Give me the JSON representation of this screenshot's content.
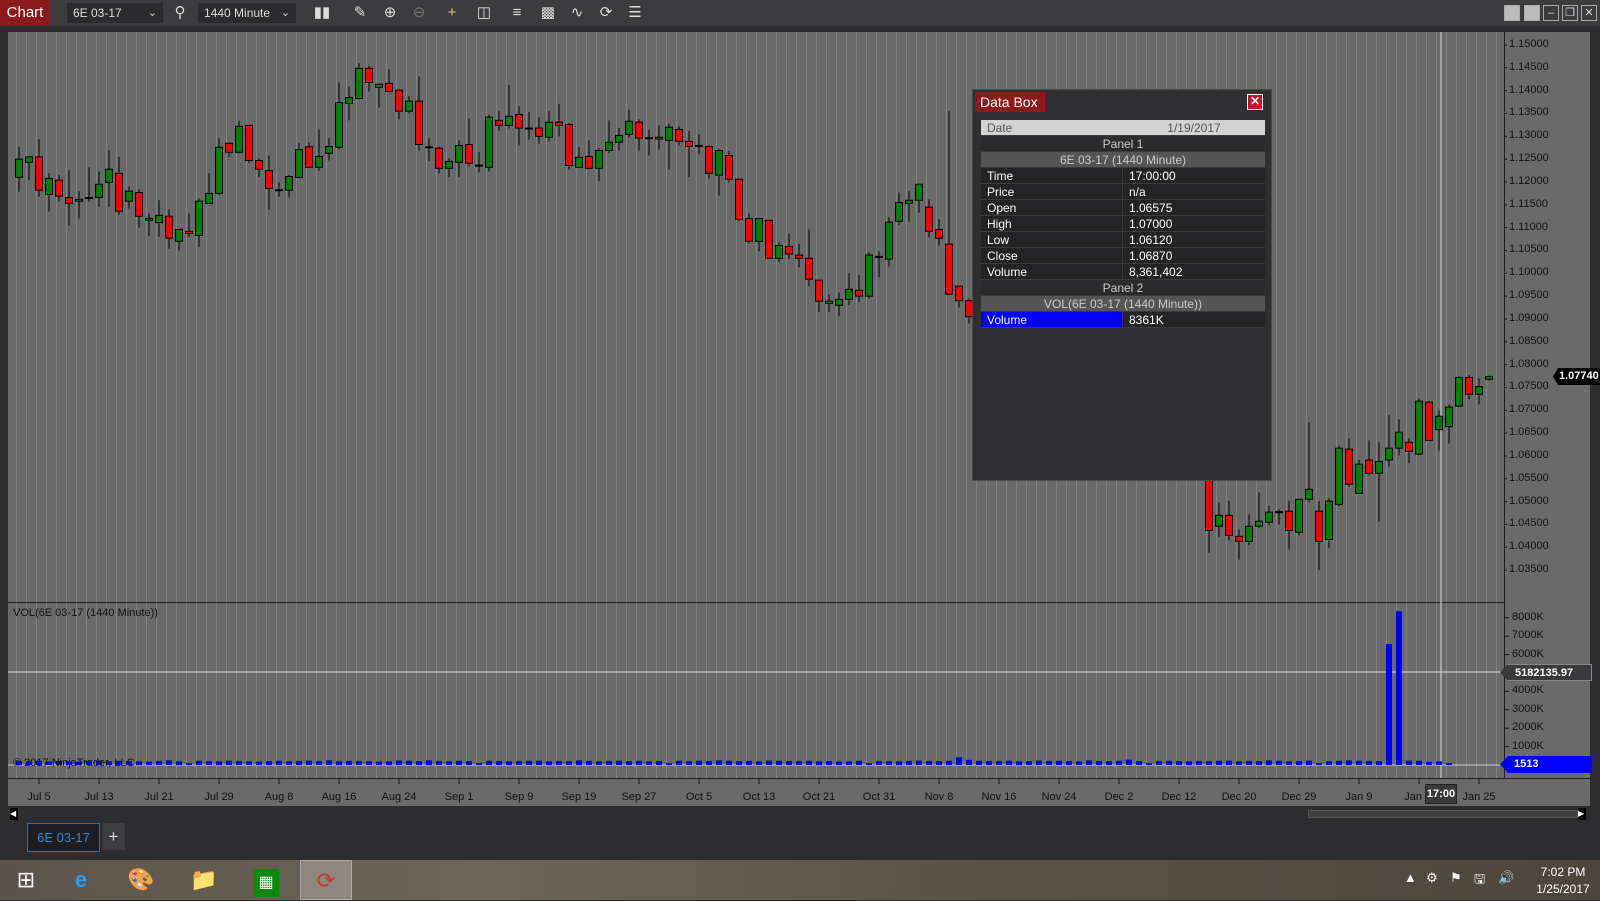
{
  "toolbar": {
    "chart_tab": "Chart",
    "instrument": "6E 03-17",
    "interval": "1440 Minute"
  },
  "data_box": {
    "title": "Data Box",
    "date_label": "Date",
    "date": "1/19/2017",
    "panel1": "Panel 1",
    "panel1_series": "6E 03-17 (1440 Minute)",
    "rows": [
      {
        "k": "Time",
        "v": "17:00:00"
      },
      {
        "k": "Price",
        "v": "n/a"
      },
      {
        "k": "Open",
        "v": "1.06575"
      },
      {
        "k": "High",
        "v": "1.07000"
      },
      {
        "k": "Low",
        "v": "1.06120"
      },
      {
        "k": "Close",
        "v": "1.06870"
      },
      {
        "k": "Volume",
        "v": "8,361,402"
      }
    ],
    "panel2": "Panel 2",
    "panel2_series": "VOL(6E 03-17 (1440 Minute))",
    "vol_label": "Volume",
    "vol_value": "8361K"
  },
  "volume_panel": {
    "title": "VOL(6E 03-17 (1440 Minute))",
    "copyright": "© 2017 NinjaTrader, LLC",
    "crosshair_value": "5182135.97",
    "last_value": "1513"
  },
  "price_panel": {
    "last_price": "1.07740",
    "cursor_time": "17:00"
  },
  "tabs": [
    {
      "label": "6E 03-17"
    },
    {
      "label": "+"
    }
  ],
  "taskbar": {
    "time": "7:02 PM",
    "date": "1/25/2017"
  },
  "colors": {
    "up": "#008000",
    "down": "#ff0000",
    "volume": "#0000ff",
    "chart_bg": "#6a6a6a",
    "accent": "#8b1a1a"
  },
  "chart_data": [
    {
      "type": "candlestick",
      "instrument": "6E 03-17 (1440 Minute)",
      "ylim": [
        1.035,
        1.15
      ],
      "y_ticks": [
        "1.15000",
        "1.14500",
        "1.14000",
        "1.13500",
        "1.13000",
        "1.12500",
        "1.12000",
        "1.11500",
        "1.11000",
        "1.10500",
        "1.10000",
        "1.09500",
        "1.09000",
        "1.08500",
        "1.08000",
        "1.07500",
        "1.07000",
        "1.06500",
        "1.06000",
        "1.05500",
        "1.05000",
        "1.04500",
        "1.04000",
        "1.03500"
      ],
      "x_ticks": [
        "Jul 5",
        "Jul 13",
        "Jul 21",
        "Jul 29",
        "Aug 8",
        "Aug 16",
        "Aug 24",
        "Sep 1",
        "Sep 9",
        "Sep 19",
        "Sep 27",
        "Oct 5",
        "Oct 13",
        "Oct 21",
        "Oct 31",
        "Nov 8",
        "Nov 16",
        "Nov 24",
        "Dec 2",
        "Dec 12",
        "Dec 20",
        "Dec 29",
        "Jan 9",
        "Jan",
        "Jan 25"
      ],
      "ohlc_fields": [
        "open",
        "high",
        "low",
        "close"
      ],
      "candles": [
        [
          1.121,
          1.1277,
          1.1179,
          1.125
        ],
        [
          1.1243,
          1.1255,
          1.1204,
          1.1255
        ],
        [
          1.1255,
          1.1294,
          1.1168,
          1.1182
        ],
        [
          1.1173,
          1.1219,
          1.1135,
          1.1208
        ],
        [
          1.1204,
          1.1215,
          1.1157,
          1.1169
        ],
        [
          1.1166,
          1.1226,
          1.1104,
          1.1153
        ],
        [
          1.1158,
          1.118,
          1.112,
          1.1162
        ],
        [
          1.1166,
          1.1232,
          1.1157,
          1.1166
        ],
        [
          1.1166,
          1.1223,
          1.1146,
          1.1195
        ],
        [
          1.1199,
          1.127,
          1.1146,
          1.1228
        ],
        [
          1.1219,
          1.1255,
          1.1128,
          1.1136
        ],
        [
          1.1158,
          1.119,
          1.1142,
          1.118
        ],
        [
          1.1177,
          1.1184,
          1.11,
          1.1125
        ],
        [
          1.112,
          1.1131,
          1.1082,
          1.1116
        ],
        [
          1.1111,
          1.116,
          1.108,
          1.1127
        ],
        [
          1.1125,
          1.114,
          1.1054,
          1.1077
        ],
        [
          1.107,
          1.1096,
          1.105,
          1.1096
        ],
        [
          1.1092,
          1.1131,
          1.1079,
          1.1087
        ],
        [
          1.1083,
          1.1164,
          1.1058,
          1.1158
        ],
        [
          1.1153,
          1.1219,
          1.1151,
          1.1175
        ],
        [
          1.1175,
          1.1296,
          1.1171,
          1.1276
        ],
        [
          1.1285,
          1.1285,
          1.1255,
          1.1265
        ],
        [
          1.1265,
          1.1333,
          1.1263,
          1.1322
        ],
        [
          1.1324,
          1.1324,
          1.1241,
          1.1247
        ],
        [
          1.1247,
          1.1252,
          1.121,
          1.1228
        ],
        [
          1.1225,
          1.1258,
          1.1139,
          1.1186
        ],
        [
          1.1183,
          1.1199,
          1.1168,
          1.1183
        ],
        [
          1.1182,
          1.1216,
          1.1166,
          1.1212
        ],
        [
          1.121,
          1.1285,
          1.121,
          1.1271
        ],
        [
          1.1277,
          1.1287,
          1.123,
          1.1232
        ],
        [
          1.1232,
          1.1315,
          1.1225,
          1.1256
        ],
        [
          1.1263,
          1.1296,
          1.1247,
          1.1278
        ],
        [
          1.1276,
          1.1418,
          1.1271,
          1.1374
        ],
        [
          1.1372,
          1.1409,
          1.1335,
          1.1385
        ],
        [
          1.1383,
          1.146,
          1.1381,
          1.1449
        ],
        [
          1.1449,
          1.1454,
          1.1398,
          1.1418
        ],
        [
          1.1407,
          1.1414,
          1.1363,
          1.1414
        ],
        [
          1.1416,
          1.1447,
          1.1396,
          1.1398
        ],
        [
          1.1401,
          1.1403,
          1.1337,
          1.1355
        ],
        [
          1.1355,
          1.1388,
          1.135,
          1.1377
        ],
        [
          1.1377,
          1.1431,
          1.1269,
          1.1282
        ],
        [
          1.1277,
          1.1296,
          1.1245,
          1.1277
        ],
        [
          1.1274,
          1.1277,
          1.1219,
          1.123
        ],
        [
          1.123,
          1.1252,
          1.121,
          1.1245
        ],
        [
          1.1243,
          1.1291,
          1.121,
          1.128
        ],
        [
          1.1282,
          1.1339,
          1.1234,
          1.1241
        ],
        [
          1.1237,
          1.1265,
          1.1221,
          1.1237
        ],
        [
          1.1232,
          1.1347,
          1.1223,
          1.1342
        ],
        [
          1.1335,
          1.1355,
          1.1312,
          1.1324
        ],
        [
          1.1324,
          1.1413,
          1.1317,
          1.1344
        ],
        [
          1.1348,
          1.1366,
          1.128,
          1.1318
        ],
        [
          1.1318,
          1.1353,
          1.1293,
          1.1318
        ],
        [
          1.1318,
          1.1342,
          1.1284,
          1.13
        ],
        [
          1.1298,
          1.1355,
          1.1289,
          1.1331
        ],
        [
          1.1331,
          1.1371,
          1.13,
          1.1324
        ],
        [
          1.1326,
          1.1329,
          1.1227,
          1.1236
        ],
        [
          1.1232,
          1.1276,
          1.123,
          1.1254
        ],
        [
          1.1256,
          1.1291,
          1.1228,
          1.123
        ],
        [
          1.123,
          1.1274,
          1.1202,
          1.1269
        ],
        [
          1.1269,
          1.1335,
          1.1263,
          1.1287
        ],
        [
          1.1287,
          1.1318,
          1.1269,
          1.1302
        ],
        [
          1.1304,
          1.1358,
          1.1297,
          1.1333
        ],
        [
          1.1331,
          1.1337,
          1.1269,
          1.1296
        ],
        [
          1.1297,
          1.1314,
          1.1258,
          1.1297
        ],
        [
          1.1294,
          1.1324,
          1.1271,
          1.1298
        ],
        [
          1.1291,
          1.1328,
          1.1227,
          1.132
        ],
        [
          1.1315,
          1.1322,
          1.128,
          1.1289
        ],
        [
          1.1289,
          1.1312,
          1.121,
          1.1278
        ],
        [
          1.128,
          1.1305,
          1.1261,
          1.128
        ],
        [
          1.1278,
          1.128,
          1.1208,
          1.1219
        ],
        [
          1.1215,
          1.1272,
          1.117,
          1.1269
        ],
        [
          1.1258,
          1.1268,
          1.1199,
          1.1206
        ],
        [
          1.1206,
          1.1208,
          1.1114,
          1.1118
        ],
        [
          1.112,
          1.1131,
          1.1066,
          1.107
        ],
        [
          1.107,
          1.112,
          1.1048,
          1.112
        ],
        [
          1.1116,
          1.1118,
          1.1031,
          1.1033
        ],
        [
          1.1033,
          1.1068,
          1.1024,
          1.1061
        ],
        [
          1.1059,
          1.1086,
          1.1031,
          1.1042
        ],
        [
          1.104,
          1.1064,
          1.1013,
          1.1033
        ],
        [
          1.1033,
          1.1096,
          1.0972,
          1.0987
        ],
        [
          1.0985,
          1.0985,
          1.0915,
          1.0939
        ],
        [
          1.0934,
          1.0954,
          1.0915,
          1.0939
        ],
        [
          1.093,
          1.0958,
          1.0906,
          1.0943
        ],
        [
          1.0943,
          1.1,
          1.093,
          1.0965
        ],
        [
          1.0963,
          1.0996,
          1.0937,
          1.095
        ],
        [
          1.095,
          1.1046,
          1.0945,
          1.104
        ],
        [
          1.1037,
          1.1048,
          1.0991,
          1.1037
        ],
        [
          1.1031,
          1.1123,
          1.1015,
          1.1112
        ],
        [
          1.1114,
          1.1177,
          1.1105,
          1.1155
        ],
        [
          1.1153,
          1.118,
          1.1113,
          1.116
        ],
        [
          1.116,
          1.1197,
          1.1133,
          1.1195
        ],
        [
          1.1145,
          1.1162,
          1.1079,
          1.1092
        ],
        [
          1.1096,
          1.1118,
          1.1061,
          1.1077
        ],
        [
          1.1064,
          1.1355,
          1.0952,
          1.0954
        ],
        [
          1.0972,
          1.0972,
          1.0925,
          1.094
        ],
        [
          1.094,
          1.0945,
          1.089,
          1.0905
        ],
        null,
        null,
        null,
        null,
        null,
        null,
        null,
        null,
        null,
        null,
        null,
        null,
        null,
        null,
        null,
        null,
        null,
        null,
        null,
        null,
        null,
        null,
        null,
        [
          1.056,
          1.057,
          1.0388,
          1.0437
        ],
        [
          1.0446,
          1.0498,
          1.0423,
          1.047
        ],
        [
          1.047,
          1.0502,
          1.0415,
          1.0426
        ],
        [
          1.0424,
          1.0439,
          1.0373,
          1.0413
        ],
        [
          1.0413,
          1.0472,
          1.0404,
          1.0446
        ],
        [
          1.0446,
          1.052,
          1.0443,
          1.0457
        ],
        [
          1.0455,
          1.0491,
          1.0448,
          1.0477
        ],
        [
          1.0478,
          1.0483,
          1.045,
          1.0478
        ],
        [
          1.0479,
          1.0501,
          1.0395,
          1.0437
        ],
        [
          1.0433,
          1.0507,
          1.0426,
          1.0505
        ],
        [
          1.0505,
          1.0674,
          1.0498,
          1.0527
        ],
        [
          1.0479,
          1.0501,
          1.035,
          1.0413
        ],
        [
          1.0417,
          1.0507,
          1.0398,
          1.0501
        ],
        [
          1.0494,
          1.0623,
          1.049,
          1.0617
        ],
        [
          1.0615,
          1.0639,
          1.0533,
          1.0538
        ],
        [
          1.0518,
          1.0591,
          1.0517,
          1.0582
        ],
        [
          1.0591,
          1.0634,
          1.0558,
          1.0562
        ],
        [
          1.0562,
          1.063,
          1.0456,
          1.0588
        ],
        [
          1.0591,
          1.0689,
          1.0577,
          1.0617
        ],
        [
          1.0617,
          1.068,
          1.0601,
          1.0652
        ],
        [
          1.063,
          1.0639,
          1.0584,
          1.061
        ],
        [
          1.0604,
          1.0726,
          1.0602,
          1.072
        ],
        [
          1.0718,
          1.0718,
          1.0634,
          1.0634
        ],
        [
          1.06575,
          1.07,
          1.0612,
          1.0687
        ],
        [
          1.0664,
          1.0713,
          1.0627,
          1.0707
        ],
        [
          1.0709,
          1.0774,
          1.0709,
          1.0772
        ],
        [
          1.0772,
          1.0777,
          1.0724,
          1.0735
        ],
        [
          1.0735,
          1.077,
          1.0713,
          1.0752
        ],
        [
          1.0768,
          1.0776,
          1.0766,
          1.0774
        ]
      ]
    },
    {
      "type": "bar",
      "series": "VOL(6E 03-17 (1440 Minute))",
      "unit": "K",
      "ylim": [
        0,
        8500
      ],
      "y_ticks": [
        "8000K",
        "7000K",
        "6000K",
        "4000K",
        "3000K",
        "2000K",
        "1000K"
      ],
      "values": [
        210,
        200,
        230,
        190,
        220,
        200,
        180,
        210,
        240,
        200,
        230,
        210,
        200,
        190,
        220,
        250,
        200,
        60,
        230,
        210,
        200,
        240,
        220,
        200,
        190,
        210,
        230,
        200,
        220,
        240,
        210,
        250,
        200,
        230,
        220,
        210,
        190,
        200,
        240,
        230,
        210,
        250,
        220,
        200,
        230,
        210,
        60,
        230,
        220,
        200,
        210,
        230,
        240,
        200,
        220,
        210,
        250,
        230,
        200,
        220,
        240,
        210,
        230,
        200,
        220,
        60,
        230,
        210,
        240,
        220,
        250,
        230,
        210,
        220,
        200,
        240,
        230,
        220,
        210,
        230,
        200,
        210,
        190,
        200,
        230,
        60,
        220,
        210,
        200,
        230,
        240,
        220,
        210,
        230,
        420,
        280,
        230,
        220,
        210,
        230,
        200,
        210,
        240,
        220,
        230,
        210,
        200,
        250,
        220,
        210,
        230,
        290,
        210,
        60,
        220,
        230,
        210,
        200,
        220,
        210,
        230,
        240,
        200,
        220,
        210,
        250,
        230,
        200,
        220,
        240,
        60,
        210,
        230,
        250,
        230,
        220,
        210,
        6576,
        8361,
        240,
        230,
        180,
        200,
        1.513
      ]
    }
  ]
}
